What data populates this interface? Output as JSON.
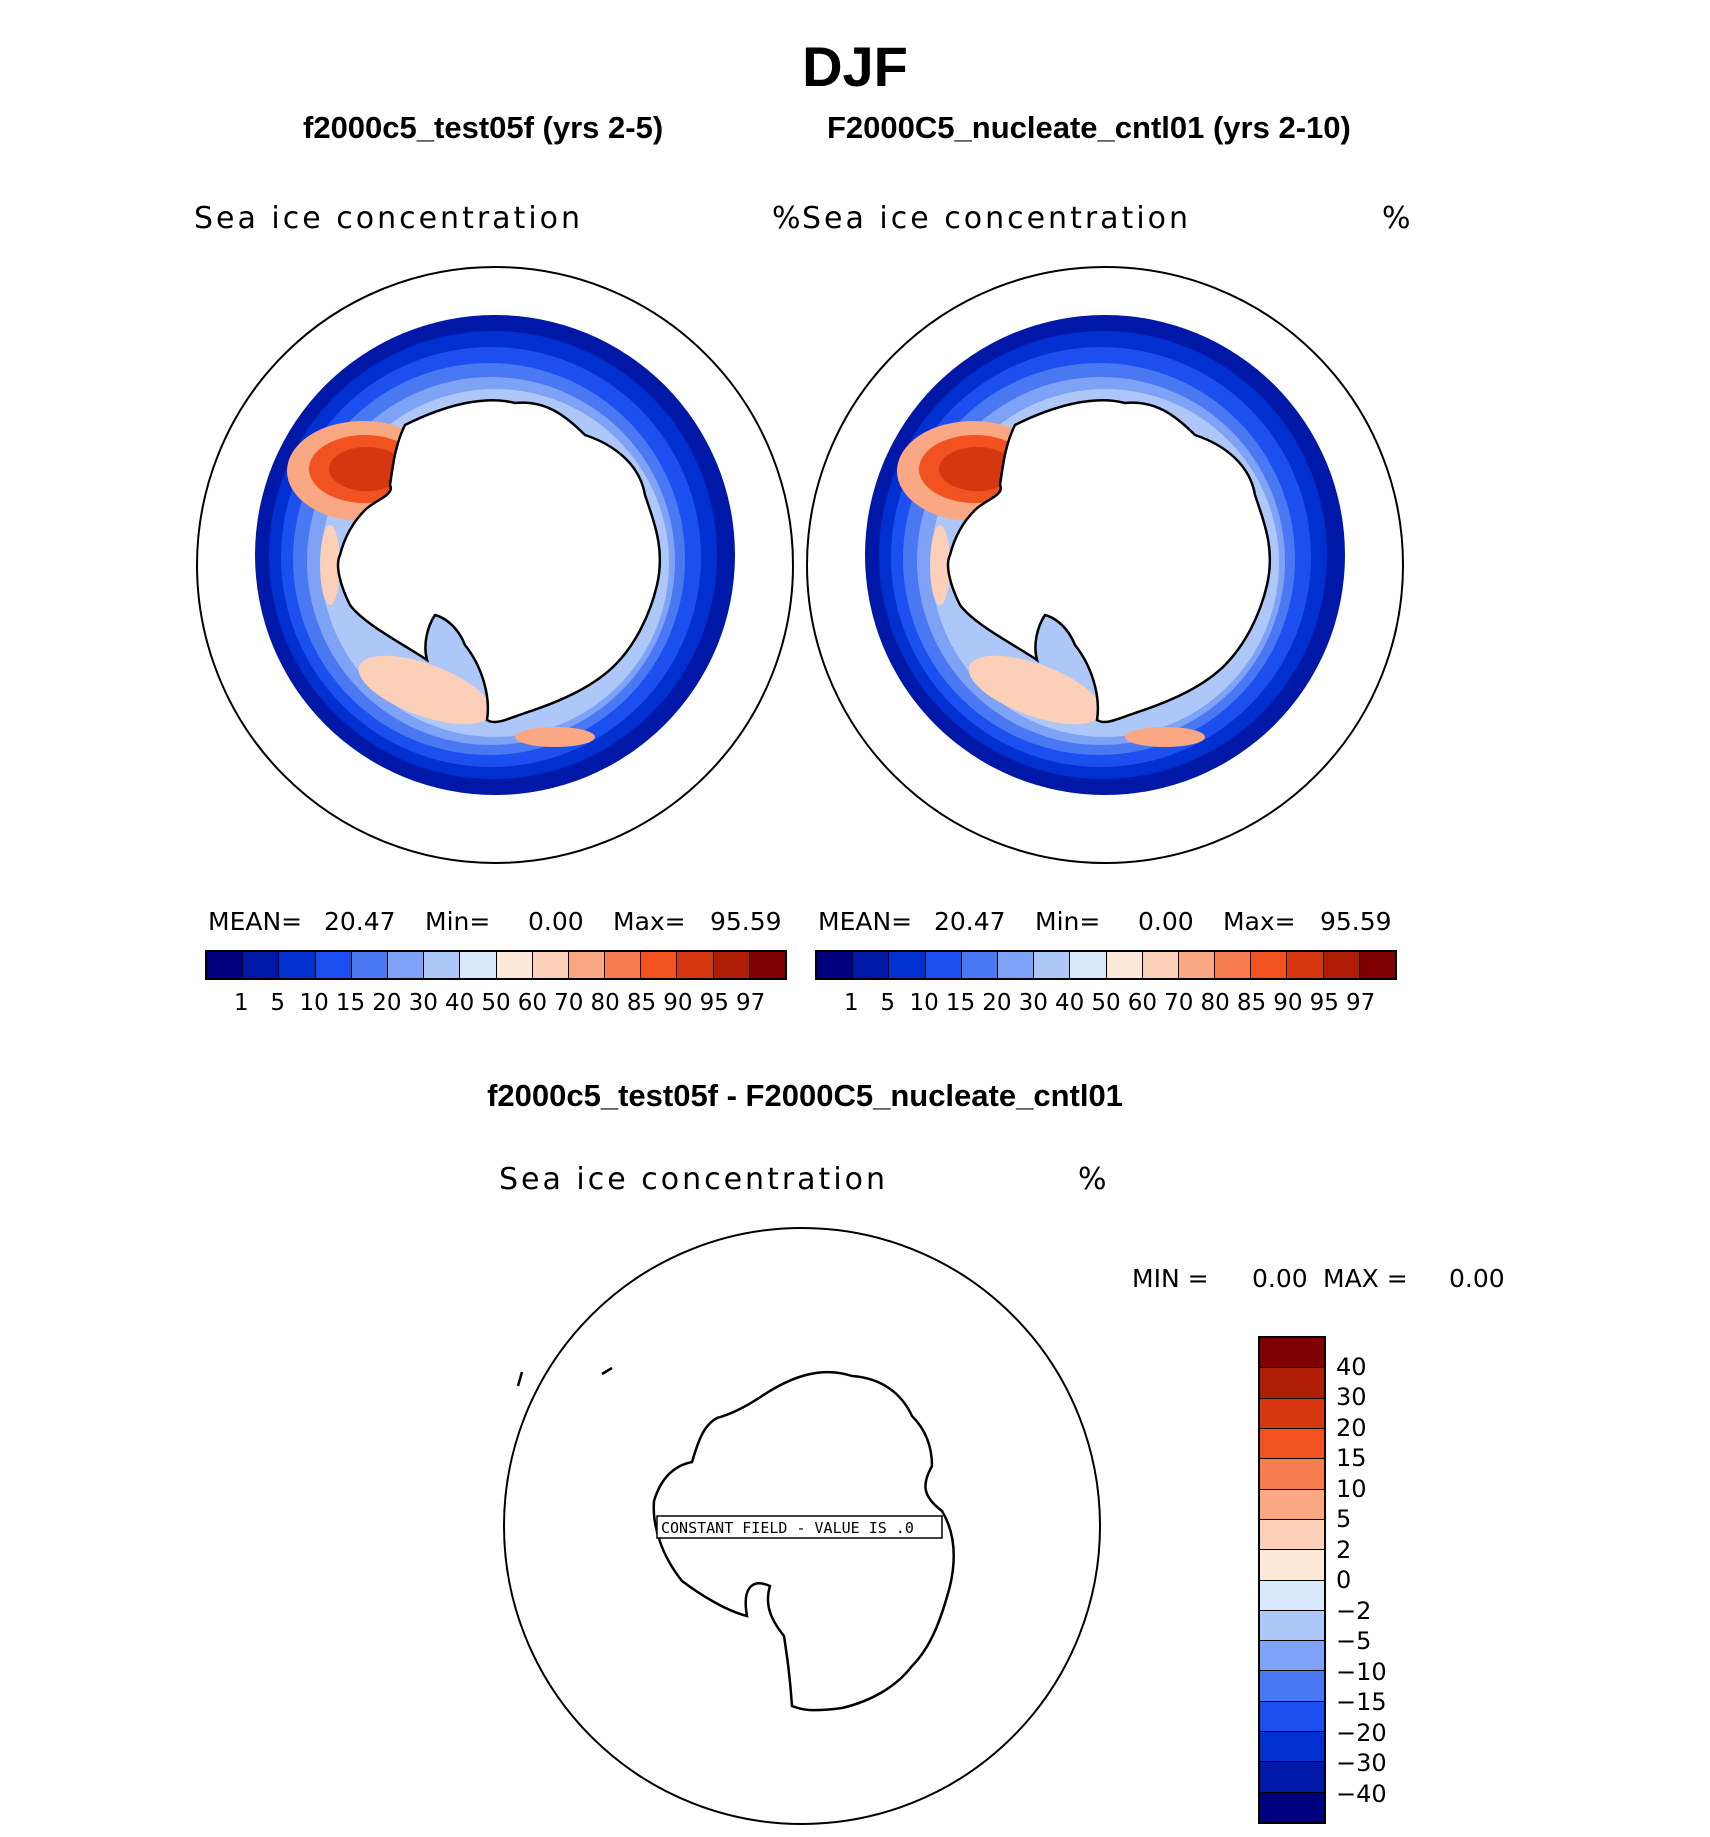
{
  "figure": {
    "title": "DJF",
    "left_case": "f2000c5_test05f (yrs 2-5)",
    "right_case": "F2000C5_nucleate_cntl01 (yrs 2-10)",
    "diff_title": "f2000c5_test05f - F2000C5_nucleate_cntl01"
  },
  "panels": [
    {
      "variable": "Sea ice concentration",
      "units": "%",
      "mean_label": "MEAN=",
      "mean_value": "20.47",
      "min_label": "Min=",
      "min_value": "0.00",
      "max_label": "Max=",
      "max_value": "95.59"
    },
    {
      "variable": "Sea ice concentration",
      "units": "%",
      "mean_label": "MEAN=",
      "mean_value": "20.47",
      "min_label": "Min=",
      "min_value": "0.00",
      "max_label": "Max=",
      "max_value": "95.59"
    }
  ],
  "colorbar_levels": [
    "1",
    "5",
    "10",
    "15",
    "20",
    "30",
    "40",
    "50",
    "60",
    "70",
    "80",
    "85",
    "90",
    "95",
    "97"
  ],
  "colorbar_colors": [
    "#00007f",
    "#0018a8",
    "#0030d0",
    "#1b4ff0",
    "#4a78f2",
    "#7ea2f6",
    "#aec7f9",
    "#d8e9fb",
    "#fde9d9",
    "#fbcfb8",
    "#f9a883",
    "#f77d50",
    "#f2521f",
    "#d63610",
    "#b01d06",
    "#800000"
  ],
  "diff_panel": {
    "variable": "Sea ice concentration",
    "units": "%",
    "min_label": "MIN =",
    "min_value": "0.00",
    "max_label": "MAX =",
    "max_value": "0.00",
    "constant_field_text": "CONSTANT FIELD - VALUE IS .0",
    "levels": [
      "40",
      "30",
      "20",
      "15",
      "10",
      "5",
      "2",
      "0",
      "−2",
      "−5",
      "−10",
      "−15",
      "−20",
      "−30",
      "−40"
    ],
    "colors": [
      "#800000",
      "#b01d06",
      "#d63610",
      "#f2521f",
      "#f77d50",
      "#f9a883",
      "#fbcfb8",
      "#fde9d9",
      "#d8e9fb",
      "#aec7f9",
      "#7ea2f6",
      "#4a78f2",
      "#1b4ff0",
      "#0030d0",
      "#0018a8",
      "#00007f"
    ]
  }
}
